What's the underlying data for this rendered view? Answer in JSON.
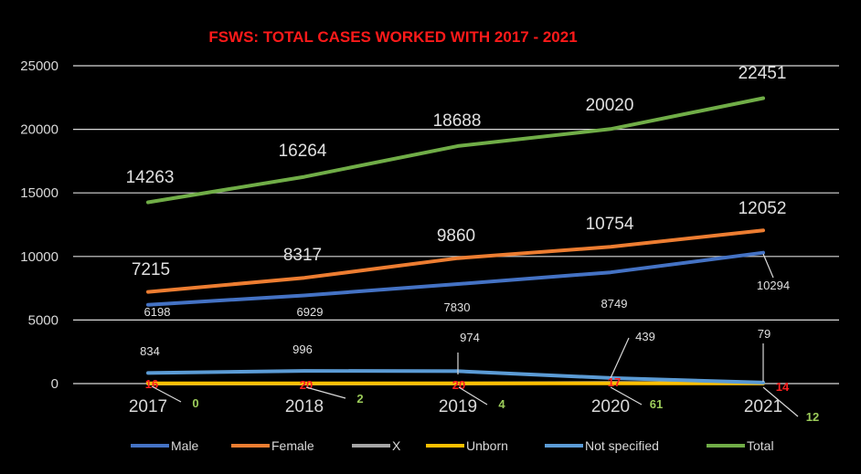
{
  "chart_data": {
    "type": "line",
    "title": "FSWS: TOTAL CASES WORKED WITH 2017 - 2021",
    "categories": [
      "2017",
      "2018",
      "2019",
      "2020",
      "2021"
    ],
    "ylim": [
      0,
      25000
    ],
    "yticks": [
      0,
      5000,
      10000,
      15000,
      20000,
      25000
    ],
    "grid": true,
    "legend_position": "bottom",
    "series": [
      {
        "name": "Male",
        "color": "#4472c4",
        "values": [
          6198,
          6929,
          7830,
          8749,
          10294
        ]
      },
      {
        "name": "Female",
        "color": "#ed7d31",
        "values": [
          7215,
          8317,
          9860,
          10754,
          12052
        ]
      },
      {
        "name": "X",
        "color": "#a5a5a5",
        "values": [
          0,
          2,
          4,
          61,
          12
        ]
      },
      {
        "name": "Unborn",
        "color": "#ffc000",
        "values": [
          16,
          20,
          20,
          17,
          14
        ]
      },
      {
        "name": "Not specified",
        "color": "#5b9bd5",
        "values": [
          834,
          996,
          974,
          439,
          79
        ]
      },
      {
        "name": "Total",
        "color": "#70ad47",
        "values": [
          14263,
          16264,
          18688,
          20020,
          22451
        ]
      }
    ],
    "data_labels": {
      "Male": [
        "6198",
        "6929",
        "7830",
        "8749",
        "10294"
      ],
      "Female": [
        "7215",
        "8317",
        "9860",
        "10754",
        "12052"
      ],
      "X": [
        "0",
        "2",
        "4",
        "61",
        "12"
      ],
      "Unborn": [
        "16",
        "20",
        "20",
        "17",
        "14"
      ],
      "Not specified": [
        "834",
        "996",
        "974",
        "439",
        "79"
      ],
      "Total": [
        "14263",
        "16264",
        "18688",
        "20020",
        "22451"
      ]
    }
  }
}
